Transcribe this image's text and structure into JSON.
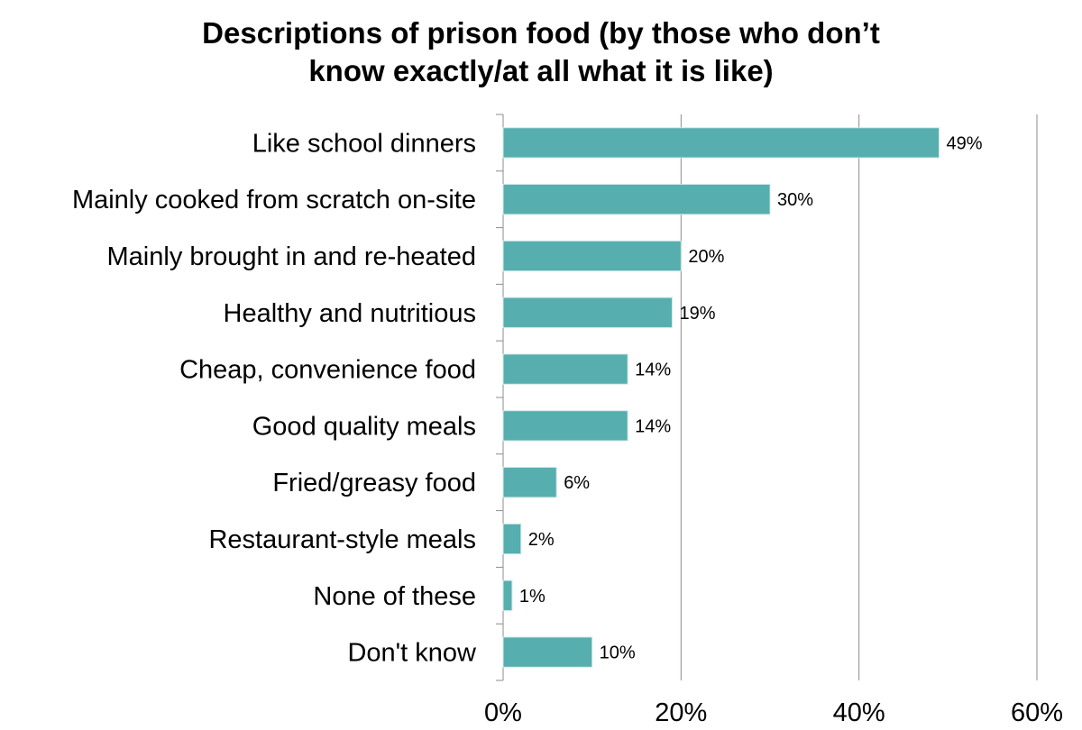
{
  "chart_data": {
    "type": "bar",
    "orientation": "horizontal",
    "title_lines": [
      "Descriptions of prison food (by those who don’t",
      "know exactly/at all what it is like)"
    ],
    "categories": [
      "Like school dinners",
      "Mainly cooked from scratch on-site",
      "Mainly brought in and re-heated",
      "Healthy and nutritious",
      "Cheap, convenience food",
      "Good quality meals",
      "Fried/greasy food",
      "Restaurant-style meals",
      "None of these",
      "Don't know"
    ],
    "values": [
      49,
      30,
      20,
      19,
      14,
      14,
      6,
      2,
      1,
      10
    ],
    "data_labels": [
      "49%",
      "30%",
      "20%",
      "19%",
      "14%",
      "14%",
      "6%",
      "2%",
      "1%",
      "10%"
    ],
    "x_ticks": [
      0,
      20,
      40,
      60
    ],
    "x_tick_labels": [
      "0%",
      "20%",
      "40%",
      "60%"
    ],
    "xlim": [
      0,
      60
    ],
    "xlabel": "",
    "ylabel": "",
    "grid": "vertical",
    "legend": "none",
    "bar_color": "#56AEAE",
    "bar_edge_color": "#CFE6E6"
  }
}
